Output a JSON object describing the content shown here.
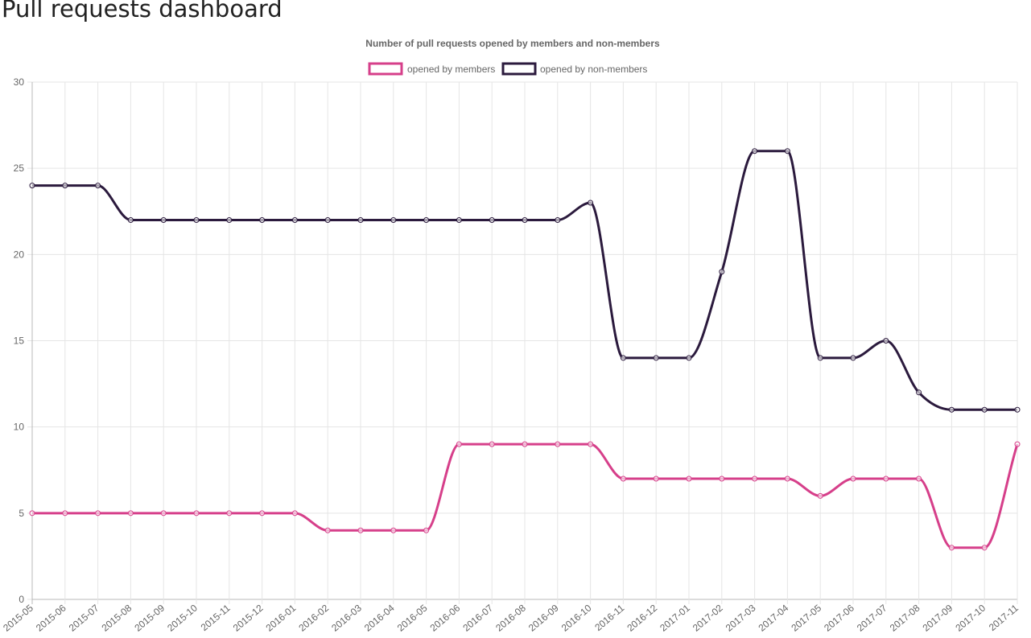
{
  "page": {
    "title": "Pull requests dashboard"
  },
  "colors": {
    "members": "#d63f8a",
    "non_members": "#2b1a3d",
    "grid": "#e5e5e5",
    "axis": "#b8b8b8",
    "tick_text": "#666666",
    "title_text": "#666666"
  },
  "chart_data": {
    "type": "line",
    "title": "Number of pull requests opened by members and non-members",
    "xlabel": "",
    "ylabel": "",
    "ylim": [
      0,
      30
    ],
    "yticks": [
      0,
      5,
      10,
      15,
      20,
      25,
      30
    ],
    "grid": true,
    "legend_position": "top",
    "smooth": true,
    "categories": [
      "2015-05",
      "2015-06",
      "2015-07",
      "2015-08",
      "2015-09",
      "2015-10",
      "2015-11",
      "2015-12",
      "2016-01",
      "2016-02",
      "2016-03",
      "2016-04",
      "2016-05",
      "2016-06",
      "2016-07",
      "2016-08",
      "2016-09",
      "2016-10",
      "2016-11",
      "2016-12",
      "2017-01",
      "2017-02",
      "2017-03",
      "2017-04",
      "2017-05",
      "2017-06",
      "2017-07",
      "2017-08",
      "2017-09",
      "2017-10",
      "2017-11"
    ],
    "series": [
      {
        "key": "members",
        "name": "opened by members",
        "values": [
          5,
          5,
          5,
          5,
          5,
          5,
          5,
          5,
          5,
          4,
          4,
          4,
          4,
          9,
          9,
          9,
          9,
          9,
          7,
          7,
          7,
          7,
          7,
          7,
          6,
          7,
          7,
          7,
          3,
          3,
          9
        ]
      },
      {
        "key": "non_members",
        "name": "opened by non-members",
        "values": [
          24,
          24,
          24,
          22,
          22,
          22,
          22,
          22,
          22,
          22,
          22,
          22,
          22,
          22,
          22,
          22,
          22,
          23,
          14,
          14,
          14,
          19,
          26,
          26,
          14,
          14,
          15,
          12,
          11,
          11,
          11
        ]
      }
    ]
  }
}
